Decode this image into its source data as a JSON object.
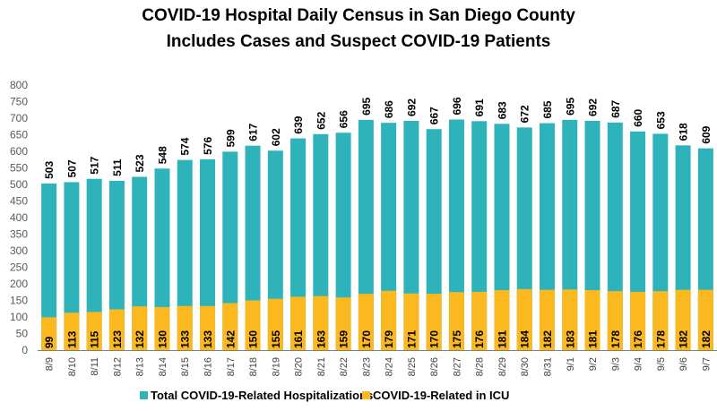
{
  "chart_data": {
    "type": "bar",
    "layout": "overlapped",
    "title": "COVID-19 Hospital Daily Census in San Diego County",
    "subtitle": "Includes Cases and Suspect COVID-19 Patients",
    "xlabel": "",
    "ylabel": "",
    "ylim": [
      0,
      800
    ],
    "yticks": [
      0,
      50,
      100,
      150,
      200,
      250,
      300,
      350,
      400,
      450,
      500,
      550,
      600,
      650,
      700,
      750,
      800
    ],
    "grid": false,
    "legend_position": "bottom",
    "categories": [
      "8/9",
      "8/10",
      "8/11",
      "8/12",
      "8/13",
      "8/14",
      "8/15",
      "8/16",
      "8/17",
      "8/18",
      "8/19",
      "8/20",
      "8/21",
      "8/22",
      "8/23",
      "8/24",
      "8/25",
      "8/26",
      "8/27",
      "8/28",
      "8/29",
      "8/30",
      "8/31",
      "9/1",
      "9/2",
      "9/3",
      "9/4",
      "9/5",
      "9/6",
      "9/7"
    ],
    "series": [
      {
        "name": "Total COVID-19-Related Hospitalizations",
        "color": "#2fb3bb",
        "label_position": "above",
        "values": [
          503,
          507,
          517,
          511,
          523,
          548,
          574,
          576,
          599,
          617,
          602,
          639,
          652,
          656,
          695,
          686,
          692,
          667,
          696,
          691,
          683,
          672,
          685,
          695,
          692,
          687,
          660,
          653,
          618,
          609
        ]
      },
      {
        "name": "COVID-19-Related in ICU",
        "color": "#fbb91f",
        "label_position": "inside-base",
        "values": [
          99,
          113,
          115,
          123,
          132,
          130,
          133,
          133,
          142,
          150,
          155,
          161,
          163,
          159,
          170,
          179,
          171,
          170,
          175,
          176,
          181,
          184,
          182,
          183,
          181,
          178,
          176,
          178,
          182,
          182
        ]
      }
    ]
  }
}
